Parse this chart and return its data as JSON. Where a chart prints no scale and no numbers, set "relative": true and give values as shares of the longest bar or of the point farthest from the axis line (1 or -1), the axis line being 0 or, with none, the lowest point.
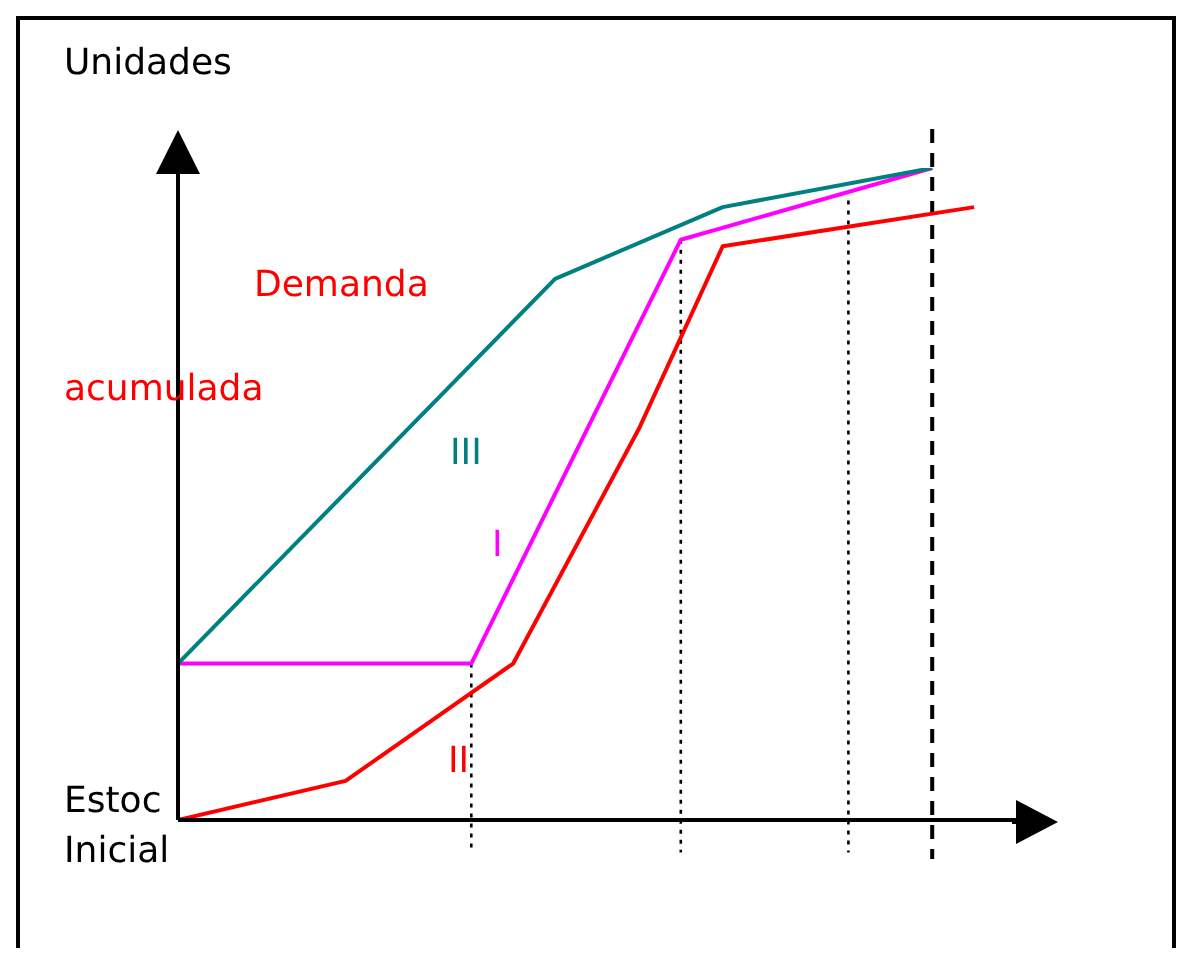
{
  "chart_data": {
    "type": "line",
    "relative": true,
    "ylabel": "Unidades",
    "marker": "none",
    "line_style": "solid",
    "categories": [
      null,
      null,
      null,
      null,
      null,
      null,
      null,
      null,
      null,
      null,
      null,
      null,
      null,
      null,
      null,
      null,
      null,
      null,
      null,
      null,
      null
    ],
    "annotations": [
      "Demanda",
      "acumulada",
      "Estoc",
      "Inicial"
    ],
    "series": [
      {
        "name": "I",
        "color": "#ff00ff",
        "values": [
          0.24,
          null,
          null,
          null,
          null,
          null,
          null,
          0.24,
          null,
          null,
          null,
          null,
          0.89,
          null,
          null,
          null,
          null,
          null,
          1,
          null,
          null
        ]
      },
      {
        "name": "II",
        "color": "#ff0000",
        "values": [
          0,
          null,
          null,
          null,
          0.06,
          null,
          null,
          null,
          0.24,
          null,
          null,
          0.6,
          null,
          0.88,
          null,
          null,
          null,
          null,
          null,
          0.94,
          null
        ]
      },
      {
        "name": "III",
        "color": "#008080",
        "values": [
          0.24,
          null,
          null,
          null,
          null,
          null,
          null,
          null,
          null,
          0.83,
          null,
          null,
          null,
          0.94,
          null,
          null,
          null,
          null,
          1,
          null,
          null
        ]
      }
    ]
  }
}
